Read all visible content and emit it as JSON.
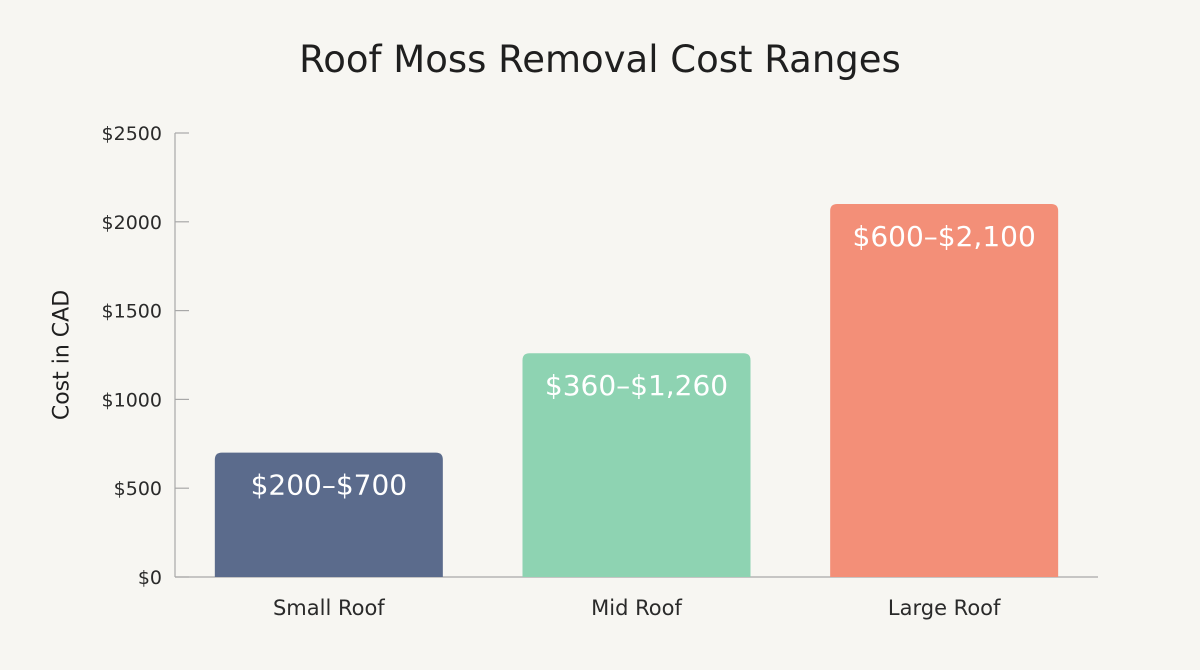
{
  "chart_data": {
    "type": "bar",
    "title": "Roof Moss Removal Cost Ranges",
    "xlabel": "",
    "ylabel": "Cost in CAD",
    "categories": [
      "Small Roof",
      "Mid Roof",
      "Large Roof"
    ],
    "values": [
      700,
      1260,
      2100
    ],
    "bar_labels": [
      "$200–$700",
      "$360–$1,260",
      "$600–$2,100"
    ],
    "colors": [
      "#5b6b8c",
      "#8ed3b2",
      "#f38f78"
    ],
    "ylim": [
      0,
      2500
    ],
    "yticks": [
      0,
      500,
      1000,
      1500,
      2000,
      2500
    ],
    "ytick_labels": [
      "$0",
      "$500",
      "$1000",
      "$1500",
      "$2000",
      "$2500"
    ],
    "grid": false,
    "legend": "none"
  }
}
